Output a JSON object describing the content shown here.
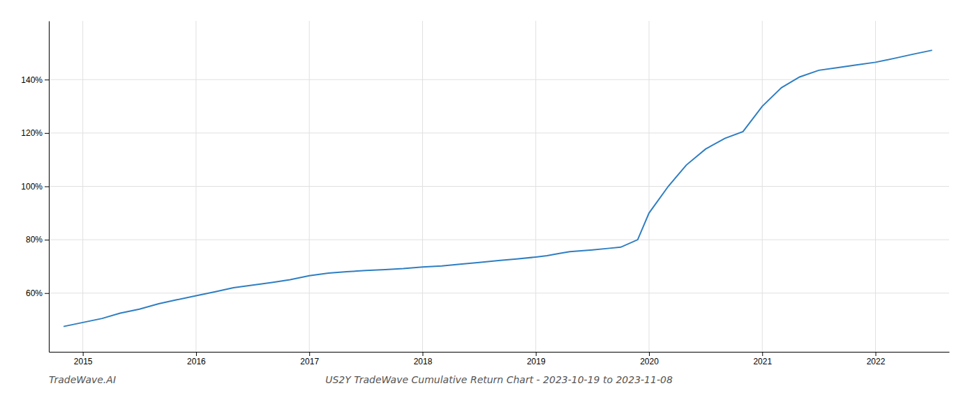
{
  "chart_data": {
    "type": "line",
    "title": "US2Y TradeWave Cumulative Return Chart - 2023-10-19 to 2023-11-08",
    "annotations": [
      "TradeWave.AI"
    ],
    "x": [
      2014.83,
      2015.0,
      2015.17,
      2015.33,
      2015.5,
      2015.67,
      2015.83,
      2016.0,
      2016.17,
      2016.33,
      2016.5,
      2016.67,
      2016.83,
      2017.0,
      2017.17,
      2017.33,
      2017.5,
      2017.67,
      2017.83,
      2018.0,
      2018.17,
      2018.33,
      2018.5,
      2018.67,
      2018.83,
      2019.0,
      2019.1,
      2019.2,
      2019.3,
      2019.5,
      2019.65,
      2019.75,
      2019.9,
      2020.0,
      2020.17,
      2020.33,
      2020.5,
      2020.67,
      2020.83,
      2021.0,
      2021.17,
      2021.33,
      2021.5,
      2021.67,
      2021.83,
      2022.0,
      2022.17,
      2022.33,
      2022.5
    ],
    "values": [
      47.5,
      49.0,
      50.5,
      52.5,
      54.0,
      56.0,
      57.5,
      59.0,
      60.5,
      62.0,
      63.0,
      64.0,
      65.0,
      66.5,
      67.5,
      68.0,
      68.5,
      68.8,
      69.2,
      69.8,
      70.2,
      70.8,
      71.5,
      72.2,
      72.8,
      73.5,
      74.0,
      74.8,
      75.5,
      76.2,
      76.8,
      77.2,
      80.0,
      90.0,
      100.0,
      108.0,
      114.0,
      118.0,
      120.5,
      130.0,
      137.0,
      141.0,
      143.5,
      144.5,
      145.5,
      146.5,
      148.0,
      149.5,
      151.0
    ],
    "color": "#2e7ec2",
    "xlim": [
      2014.7,
      2022.65
    ],
    "xticks": [
      2015,
      2016,
      2017,
      2018,
      2019,
      2020,
      2021,
      2022
    ],
    "ylim": [
      38,
      162
    ],
    "yticks": [
      {
        "value": 60,
        "label": "60%"
      },
      {
        "value": 80,
        "label": "80%"
      },
      {
        "value": 100,
        "label": "100%"
      },
      {
        "value": 120,
        "label": "120%"
      },
      {
        "value": 140,
        "label": "140%"
      }
    ],
    "grid": true
  }
}
